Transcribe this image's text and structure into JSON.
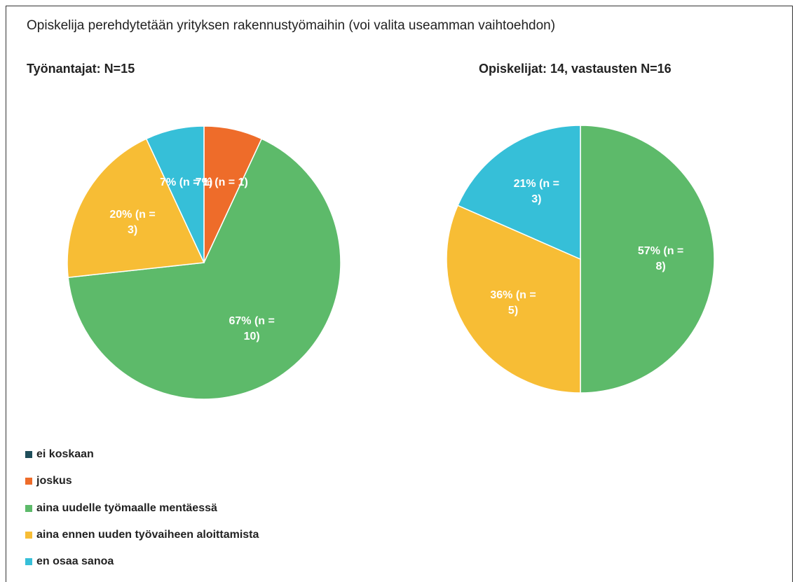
{
  "title": "Opiskelija perehdytetään yrityksen rakennustyömaihin (voi valita useamman vaihtoehdon)",
  "chart_data": [
    {
      "type": "pie",
      "title": "Työnantajat:  N=15",
      "categories": [
        "ei koskaan",
        "joskus",
        "aina uudelle työmaalle mentäessä",
        "aina ennen uuden työvaiheen aloittamista",
        "en osaa sanoa"
      ],
      "colors": [
        "#1f4e5a",
        "#ee6c2a",
        "#5dba6a",
        "#f7bd35",
        "#36bfd8"
      ],
      "values": [
        0,
        7,
        67,
        20,
        7
      ],
      "value_labels": [
        null,
        "7% (n = 1)",
        "67% (n = 10)",
        "20% (n = 3)",
        "7% (n = 1)"
      ]
    },
    {
      "type": "pie",
      "title": "Opiskelijat: 14, vastausten  N=16",
      "categories": [
        "ei koskaan",
        "joskus",
        "aina uudelle työmaalle mentäessä",
        "aina ennen uuden työvaiheen aloittamista",
        "en osaa sanoa"
      ],
      "colors": [
        "#1f4e5a",
        "#ee6c2a",
        "#5dba6a",
        "#f7bd35",
        "#36bfd8"
      ],
      "values": [
        0,
        0,
        57,
        36,
        21
      ],
      "value_labels": [
        null,
        null,
        "57% (n = 8)",
        "36% (n = 5)",
        "21% (n = 3)"
      ]
    }
  ]
}
